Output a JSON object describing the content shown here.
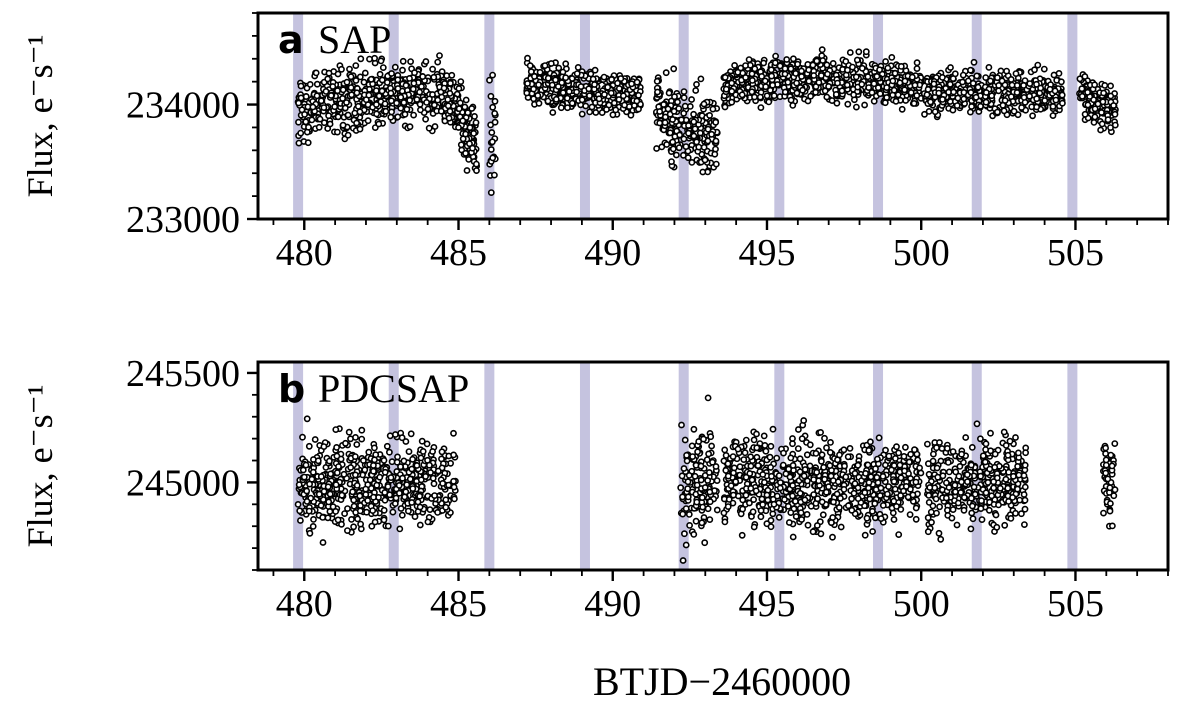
{
  "chart_data": [
    {
      "type": "scatter",
      "panel_letter": "a",
      "title": "SAP",
      "xlabel": "",
      "ylabel": "Flux, e⁻s⁻¹",
      "xlim": [
        478.5,
        508
      ],
      "ylim": [
        233000,
        234800
      ],
      "xticks": [
        480,
        485,
        490,
        495,
        500,
        505
      ],
      "xtick_labels": [
        "480",
        "485",
        "490",
        "495",
        "500",
        "505"
      ],
      "yticks": [
        233000,
        234000
      ],
      "ytick_labels": [
        "233000",
        "234000"
      ],
      "grid": false,
      "marker": "open-circle",
      "marker_color": "#000000",
      "band_color": "#c5c3df",
      "highlight_bands_x": [
        479.8,
        482.9,
        486.0,
        489.1,
        492.3,
        495.4,
        498.6,
        501.8,
        504.9
      ],
      "series": [
        {
          "segments": [
            {
              "x": [
                479.8,
                480.5,
                481.0,
                481.5,
                482.0,
                482.5,
                483.0,
                483.5,
                484.0,
                484.5,
                485.0,
                485.3,
                485.6
              ],
              "y": [
                233950,
                234000,
                234000,
                234020,
                234050,
                234080,
                234090,
                234100,
                234110,
                234110,
                234000,
                233750,
                233600
              ],
              "scatter": 300
            },
            {
              "x": [
                486.0,
                486.1,
                486.2
              ],
              "y": [
                233650,
                233700,
                233750
              ],
              "scatter": 500
            },
            {
              "x": [
                487.2,
                487.8,
                488.5,
                489.0,
                489.5,
                490.0,
                490.5,
                490.9
              ],
              "y": [
                234200,
                234180,
                234150,
                234130,
                234110,
                234100,
                234090,
                234080
              ],
              "scatter": 200
            },
            {
              "x": [
                491.4,
                491.8,
                492.2,
                492.6,
                493.0,
                493.4
              ],
              "y": [
                234000,
                233850,
                233850,
                233800,
                233780,
                233700
              ],
              "scatter": 350
            },
            {
              "x": [
                493.6,
                494.5,
                495.5,
                496.5,
                497.5,
                498.5,
                499.5,
                500.0
              ],
              "y": [
                234150,
                234200,
                234230,
                234230,
                234210,
                234200,
                234180,
                234150
              ],
              "scatter": 200
            },
            {
              "x": [
                500.1,
                501.0,
                502.0,
                503.0,
                504.0,
                504.6
              ],
              "y": [
                234100,
                234100,
                234100,
                234100,
                234100,
                234100
              ],
              "scatter": 200
            },
            {
              "x": [
                505.1,
                505.5,
                506.0,
                506.3
              ],
              "y": [
                234100,
                234050,
                234000,
                233950
              ],
              "scatter": 200
            }
          ]
        }
      ]
    },
    {
      "type": "scatter",
      "panel_letter": "b",
      "title": "PDCSAP",
      "xlabel": "BTJD−2460000",
      "ylabel": "Flux, e⁻s⁻¹",
      "xlim": [
        478.5,
        508
      ],
      "ylim": [
        244600,
        245550
      ],
      "xticks": [
        480,
        485,
        490,
        495,
        500,
        505
      ],
      "xtick_labels": [
        "480",
        "485",
        "490",
        "495",
        "500",
        "505"
      ],
      "yticks": [
        245000,
        245500
      ],
      "ytick_labels": [
        "245000",
        "245500"
      ],
      "grid": false,
      "marker": "open-circle",
      "marker_color": "#000000",
      "band_color": "#c5c3df",
      "highlight_bands_x": [
        479.8,
        482.9,
        486.0,
        489.1,
        492.3,
        495.4,
        498.6,
        501.8,
        504.9
      ],
      "series": [
        {
          "segments": [
            {
              "x": [
                479.8,
                481.0,
                482.0,
                483.0,
                484.0,
                484.9
              ],
              "y": [
                245000,
                245000,
                245000,
                245000,
                245000,
                245000
              ],
              "scatter": 220
            },
            {
              "x": [
                492.2,
                492.6,
                493.0,
                493.4
              ],
              "y": [
                244950,
                244980,
                245000,
                245000
              ],
              "scatter": 280
            },
            {
              "x": [
                493.6,
                495.0,
                496.5,
                498.0,
                499.5,
                500.0
              ],
              "y": [
                245000,
                245000,
                245000,
                245000,
                245000,
                245000
              ],
              "scatter": 220
            },
            {
              "x": [
                500.2,
                501.5,
                502.5,
                503.4
              ],
              "y": [
                245000,
                245000,
                245000,
                245000
              ],
              "scatter": 220
            },
            {
              "x": [
                505.9,
                506.1,
                506.3
              ],
              "y": [
                245000,
                245000,
                245000
              ],
              "scatter": 200
            }
          ]
        }
      ]
    }
  ]
}
